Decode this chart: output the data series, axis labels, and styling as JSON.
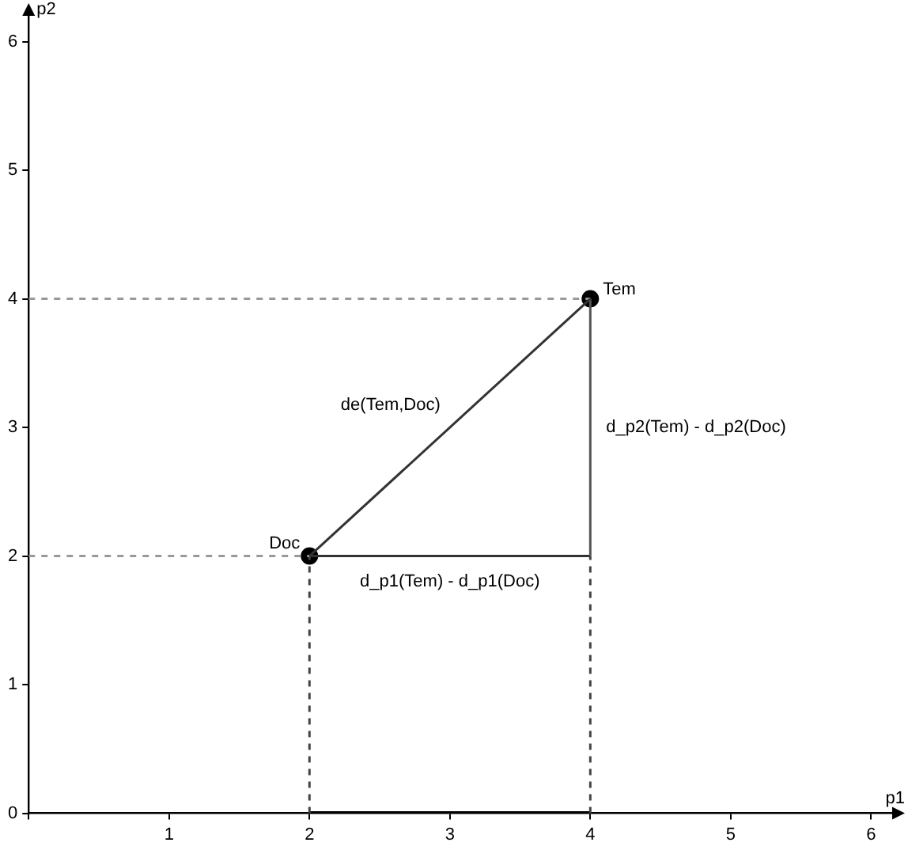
{
  "chart_data": {
    "type": "line",
    "xlabel": "p1",
    "ylabel": "p2",
    "xlim": [
      0,
      6.15
    ],
    "ylim": [
      0,
      6.2
    ],
    "xticks": [
      {
        "value": 0,
        "label": null
      },
      1,
      2,
      3,
      4,
      5,
      6
    ],
    "yticks": [
      0,
      1,
      2,
      3,
      4,
      5,
      6
    ],
    "grid": false,
    "legend": false,
    "series": [
      {
        "color": "#333333",
        "x": [
          2,
          4
        ],
        "values": [
          2,
          4
        ],
        "line_style": "solid"
      },
      {
        "color": "#555555",
        "x": [
          4,
          4
        ],
        "values": [
          2,
          4
        ],
        "line_style": "solid"
      },
      {
        "color": "#333333",
        "x": [
          2,
          4
        ],
        "values": [
          2,
          2
        ],
        "line_style": "solid"
      },
      {
        "color": "#999999",
        "x": [
          0,
          4
        ],
        "values": [
          4,
          4
        ],
        "line_style": "dashed"
      },
      {
        "color": "#999999",
        "x": [
          0,
          2
        ],
        "values": [
          2,
          2
        ],
        "line_style": "dashed"
      },
      {
        "color": "#444444",
        "x": [
          2,
          2
        ],
        "values": [
          0,
          2
        ],
        "line_style": "dashed"
      },
      {
        "color": "#444444",
        "x": [
          4,
          4
        ],
        "values": [
          0,
          2
        ],
        "line_style": "dashed"
      },
      {
        "color": "#000000",
        "x": [
          2,
          4
        ],
        "values": [
          0,
          0
        ],
        "line_style": "solid"
      },
      {
        "type": "scatter",
        "color": "#000000",
        "x": [
          2,
          4
        ],
        "values": [
          2,
          4
        ],
        "marker": "circle"
      }
    ],
    "annotations": [
      {
        "text": "Doc",
        "x": 2,
        "y": 2
      },
      {
        "text": "Tem",
        "x": 4,
        "y": 4
      },
      {
        "text": "de(Tem,Doc)",
        "x": 3,
        "y": 3
      },
      {
        "text": "d_p2(Tem) - d_p2(Doc)",
        "x": 4,
        "y": 3
      },
      {
        "text": "d_p1(Tem) - d_p1(Doc)",
        "x": 3,
        "y": 2
      }
    ]
  }
}
